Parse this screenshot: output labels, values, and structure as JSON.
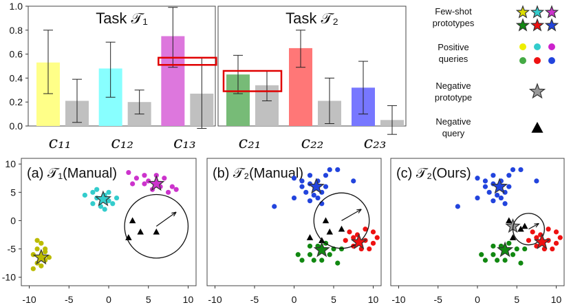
{
  "chart_data": [
    {
      "type": "bar",
      "panel": "top-left",
      "title": "Task 𝒯₁",
      "ylim": [
        0,
        1.0
      ],
      "yticks": [
        "0.0",
        "0.2",
        "0.4",
        "0.6",
        "0.8",
        "1.0"
      ],
      "groups": [
        "c₁₁",
        "c₁₂",
        "c₁₃"
      ],
      "bars": [
        {
          "group": 0,
          "value": 0.53,
          "err_low": 0.27,
          "err_high": 0.8,
          "color": "#ffff88"
        },
        {
          "group": 0,
          "value": 0.21,
          "err_low": 0.03,
          "err_high": 0.39,
          "color": "#c0c0c0"
        },
        {
          "group": 1,
          "value": 0.48,
          "err_low": 0.24,
          "err_high": 0.7,
          "color": "#88ffff"
        },
        {
          "group": 1,
          "value": 0.2,
          "err_low": 0.1,
          "err_high": 0.3,
          "color": "#c0c0c0"
        },
        {
          "group": 2,
          "value": 0.75,
          "err_low": 0.49,
          "err_high": 0.99,
          "color": "#dd77dd"
        },
        {
          "group": 2,
          "value": 0.27,
          "err_low": -0.02,
          "err_high": 0.57,
          "color": "#c0c0c0"
        }
      ],
      "highlight": {
        "y_low": 0.51,
        "y_high": 0.57,
        "bars": [
          4,
          5
        ]
      }
    },
    {
      "type": "bar",
      "panel": "top-middle",
      "title": "Task 𝒯₂",
      "ylim": [
        0,
        1.0
      ],
      "groups": [
        "c₂₁",
        "c₂₂",
        "c₂₃"
      ],
      "bars": [
        {
          "group": 0,
          "value": 0.43,
          "err_low": 0.27,
          "err_high": 0.59,
          "color": "#77bb77"
        },
        {
          "group": 0,
          "value": 0.34,
          "err_low": 0.21,
          "err_high": 0.46,
          "color": "#c0c0c0"
        },
        {
          "group": 1,
          "value": 0.65,
          "err_low": 0.49,
          "err_high": 0.8,
          "color": "#ff7777"
        },
        {
          "group": 1,
          "value": 0.21,
          "err_low": 0.02,
          "err_high": 0.4,
          "color": "#c0c0c0"
        },
        {
          "group": 2,
          "value": 0.32,
          "err_low": 0.1,
          "err_high": 0.54,
          "color": "#7777ff"
        },
        {
          "group": 2,
          "value": 0.05,
          "err_low": -0.07,
          "err_high": 0.17,
          "color": "#c0c0c0"
        }
      ],
      "highlight": {
        "y_low": 0.29,
        "y_high": 0.46,
        "bars": [
          0,
          1
        ]
      }
    },
    {
      "type": "scatter",
      "panel": "bottom-left",
      "title": "(a) 𝒯₁(Manual)",
      "xlim": [
        -11,
        11
      ],
      "ylim": [
        -11.5,
        11
      ],
      "xticks": [
        -10,
        -5,
        0,
        5,
        10
      ],
      "yticks": [
        10,
        5,
        0,
        -5,
        -10
      ],
      "clusters": [
        {
          "color": "#cc33cc",
          "center": [
            6,
            6.5
          ],
          "points": [
            [
              2.5,
              8.5
            ],
            [
              3.5,
              7.5
            ],
            [
              4.5,
              8
            ],
            [
              5,
              7
            ],
            [
              6,
              8
            ],
            [
              7,
              7.5
            ],
            [
              8,
              6
            ],
            [
              8.5,
              5.5
            ],
            [
              7.5,
              5
            ],
            [
              4.5,
              6.5
            ],
            [
              6.5,
              6
            ],
            [
              5.5,
              5.5
            ],
            [
              3,
              6.5
            ]
          ]
        },
        {
          "color": "#33cccc",
          "center": [
            -0.7,
            3.8
          ],
          "points": [
            [
              -3,
              4.5
            ],
            [
              -2,
              5
            ],
            [
              -1.5,
              5.5
            ],
            [
              -0.5,
              4.5
            ],
            [
              0,
              3.5
            ],
            [
              0.5,
              3
            ],
            [
              -1,
              2.5
            ],
            [
              -0.5,
              2
            ],
            [
              -2,
              3
            ],
            [
              1,
              4
            ],
            [
              0,
              5
            ],
            [
              -1.5,
              4
            ]
          ]
        },
        {
          "color": "#bbbb00",
          "center": [
            -8.5,
            -6.5
          ],
          "points": [
            [
              -9,
              -3.5
            ],
            [
              -8.5,
              -4
            ],
            [
              -8,
              -5
            ],
            [
              -9.5,
              -6
            ],
            [
              -8,
              -7
            ],
            [
              -9,
              -7.5
            ],
            [
              -9.5,
              -8.5
            ],
            [
              -8.5,
              -8
            ],
            [
              -7.5,
              -6.5
            ],
            [
              -8,
              -5.5
            ],
            [
              -9,
              -5
            ]
          ]
        }
      ],
      "neg_queries": [
        [
          2.5,
          -3
        ],
        [
          3,
          0
        ],
        [
          4,
          -2
        ],
        [
          6,
          -2
        ]
      ],
      "circle": {
        "center": [
          6,
          -1
        ],
        "radius": 4
      },
      "arrow": {
        "from": [
          6,
          -1
        ],
        "to": [
          8.5,
          1.5
        ]
      }
    },
    {
      "type": "scatter",
      "panel": "bottom-middle",
      "title": "(b) 𝒯₂(Manual)",
      "xlim": [
        -11,
        11
      ],
      "ylim": [
        -11.5,
        11
      ],
      "xticks": [
        -10,
        -5,
        0,
        5,
        10
      ],
      "clusters": [
        {
          "color": "#2244dd",
          "center": [
            2.8,
            6
          ],
          "points": [
            [
              0,
              7.5
            ],
            [
              1,
              7
            ],
            [
              2,
              8
            ],
            [
              3,
              7
            ],
            [
              4,
              8
            ],
            [
              4.5,
              9
            ],
            [
              5.5,
              9
            ],
            [
              1.5,
              5
            ],
            [
              2.5,
              4.5
            ],
            [
              3.5,
              5
            ],
            [
              1,
              6
            ],
            [
              2,
              6.5
            ],
            [
              4,
              6
            ],
            [
              3,
              4
            ],
            [
              7.5,
              7
            ],
            [
              -2.5,
              2.5
            ],
            [
              0,
              4
            ],
            [
              2,
              3.5
            ],
            [
              3.5,
              3
            ]
          ]
        },
        {
          "color": "#ee1111",
          "center": [
            8.2,
            -3.8
          ],
          "points": [
            [
              7,
              -2
            ],
            [
              8,
              -2.5
            ],
            [
              9,
              -1.5
            ],
            [
              10,
              -2
            ],
            [
              10,
              -4
            ],
            [
              9.5,
              -5
            ],
            [
              8.5,
              -5
            ],
            [
              7.5,
              -4.5
            ],
            [
              6.5,
              -3.5
            ],
            [
              9,
              -3.5
            ],
            [
              7.5,
              -3
            ],
            [
              10.5,
              -3
            ]
          ]
        },
        {
          "color": "#118811",
          "center": [
            3.5,
            -5.2
          ],
          "points": [
            [
              1,
              -7
            ],
            [
              2,
              -6
            ],
            [
              2.5,
              -7
            ],
            [
              3,
              -4.5
            ],
            [
              4,
              -4
            ],
            [
              4.5,
              -6
            ],
            [
              5,
              -5
            ],
            [
              5.5,
              -7.5
            ],
            [
              6,
              -5
            ],
            [
              2,
              -4.5
            ],
            [
              0.5,
              -6
            ],
            [
              3.5,
              -7
            ]
          ]
        }
      ],
      "neg_queries": [
        [
          2,
          -3
        ],
        [
          4,
          0
        ],
        [
          6,
          -1.5
        ],
        [
          4.5,
          -2
        ],
        [
          3.5,
          -3.5
        ]
      ],
      "circle": {
        "center": [
          6,
          0
        ],
        "radius": 3.5
      },
      "arrow": {
        "from": [
          6,
          0
        ],
        "to": [
          8.5,
          2
        ]
      }
    },
    {
      "type": "scatter",
      "panel": "bottom-right",
      "title": "(c) 𝒯₂(Ours)",
      "xlim": [
        -11,
        11
      ],
      "ylim": [
        -11.5,
        11
      ],
      "xticks": [
        -10,
        -5,
        0,
        5,
        10
      ],
      "clusters": [
        {
          "color": "#2244dd",
          "center": [
            2.8,
            6
          ],
          "points": [
            [
              0,
              7.5
            ],
            [
              1,
              7
            ],
            [
              2,
              8
            ],
            [
              3,
              7
            ],
            [
              4,
              8
            ],
            [
              4.5,
              9
            ],
            [
              5.5,
              9
            ],
            [
              1.5,
              5
            ],
            [
              2.5,
              4.5
            ],
            [
              3.5,
              5
            ],
            [
              1,
              6
            ],
            [
              2,
              6.5
            ],
            [
              4,
              6
            ],
            [
              3,
              4
            ],
            [
              7.5,
              7
            ],
            [
              -2.5,
              2.5
            ],
            [
              0,
              4
            ],
            [
              2,
              3.5
            ],
            [
              3.5,
              3
            ]
          ]
        },
        {
          "color": "#ee1111",
          "center": [
            8.2,
            -3.8
          ],
          "points": [
            [
              7,
              -2
            ],
            [
              8,
              -2.5
            ],
            [
              9,
              -1.5
            ],
            [
              10,
              -2
            ],
            [
              10,
              -4
            ],
            [
              9.5,
              -5
            ],
            [
              8.5,
              -5
            ],
            [
              7.5,
              -4.5
            ],
            [
              6.5,
              -3.5
            ],
            [
              9,
              -3.5
            ],
            [
              7.5,
              -3
            ],
            [
              10.5,
              -3
            ]
          ]
        },
        {
          "color": "#118811",
          "center": [
            3.5,
            -5.2
          ],
          "points": [
            [
              1,
              -7
            ],
            [
              2,
              -6
            ],
            [
              2.5,
              -7
            ],
            [
              3,
              -4.5
            ],
            [
              4,
              -4
            ],
            [
              4.5,
              -6
            ],
            [
              5,
              -5
            ],
            [
              5.5,
              -7.5
            ],
            [
              6,
              -5
            ],
            [
              2,
              -4.5
            ],
            [
              0.5,
              -6
            ],
            [
              3.5,
              -7
            ]
          ]
        }
      ],
      "neg_queries": [
        [
          4,
          0
        ],
        [
          5.5,
          -1.5
        ],
        [
          4.5,
          -3
        ],
        [
          6,
          -1
        ]
      ],
      "neg_prototype": [
        4.5,
        -1
      ],
      "circle": {
        "center": [
          6.5,
          -1.5
        ],
        "radius": 2
      },
      "arrow": {
        "from": [
          6.5,
          -1.5
        ],
        "to": [
          7.8,
          -0.5
        ]
      }
    }
  ],
  "legend": {
    "few_shot_label": "Few-shot prototypes",
    "positive_label": "Positive queries",
    "neg_proto_label": "Negative prototype",
    "neg_query_label": "Negative query",
    "proto_colors": [
      [
        "#dddd00",
        "#33cccc",
        "#cc33cc"
      ],
      [
        "#118811",
        "#ee1111",
        "#2244dd"
      ]
    ],
    "query_colors": [
      [
        "#eeee00",
        "#33cccc",
        "#cc22cc"
      ],
      [
        "#44aa44",
        "#ee1111",
        "#2244dd"
      ]
    ]
  }
}
